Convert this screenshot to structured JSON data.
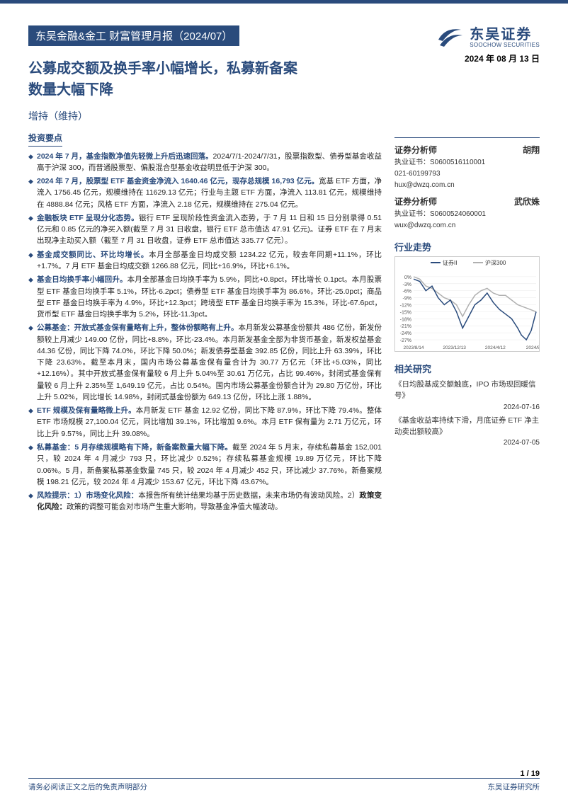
{
  "header": {
    "report_tag": "东吴金融&金工 财富管理月报（2024/07）",
    "logo_cn": "东吴证券",
    "logo_en": "SOOCHOW SECURITIES",
    "main_title_l1": "公募成交额及换手率小幅增长，私募新备案",
    "main_title_l2": "数量大幅下降",
    "rating": "增持（维持）",
    "date": "2024 年 08 月 13 日"
  },
  "analysts": [
    {
      "role": "证券分析师",
      "name": "胡翔",
      "cert": "执业证书：S0600516110001",
      "phone": "021-60199793",
      "email": "hux@dwzq.com.cn"
    },
    {
      "role": "证券分析师",
      "name": "武欣姝",
      "cert": "执业证书：S0600524060001",
      "phone": "",
      "email": "wux@dwzq.com.cn"
    }
  ],
  "left": {
    "section_title": "投资要点"
  },
  "points": [
    {
      "lead": "2024 年 7 月，基金指数净值先轻微上升后迅速回落。",
      "body": "2024/7/1-2024/7/31，股票指数型、债券型基金收益高于沪深 300，而普通股票型、偏股混合型基金收益明显低于沪深 300。"
    },
    {
      "lead": "2024 年 7 月，股票型 ETF 基金资金净流入 1640.46 亿元，现存总规模 16,793 亿元。",
      "body": "宽基 ETF 方面，净流入 1756.45 亿元，规模维持在 11629.13 亿元；行业与主题 ETF 方面，净流入 113.81 亿元，规模维持在 4888.84 亿元；风格 ETF 方面，净流入 2.18 亿元，规模维持在 275.04 亿元。"
    },
    {
      "lead": "金融板块 ETF 呈现分化态势。",
      "body": "银行 ETF 呈现阶段性资金流入态势，于 7 月 11 日和 15 日分别录得 0.51 亿元和 0.85 亿元的净买入额(截至 7 月 31 日收盘，银行 ETF 总市值达 47.91 亿元)。证券 ETF 在 7 月末出现净主动买入额（截至 7 月 31 日收盘，证券 ETF 总市值达 335.77 亿元）。"
    },
    {
      "lead": "基金成交额同比、环比均增长。",
      "body": "本月全部基金日均成交额 1234.22 亿元，较去年同期+11.1%，环比+1.7%。7 月 ETF 基金日均成交额 1266.88 亿元，同比+16.9%，环比+6.1%。"
    },
    {
      "lead": "基金日均换手率小幅回升。",
      "body": "本月全部基金日均换手率为 5.9%，同比+0.8pct，环比增长 0.1pct。本月股票型 ETF 基金日均换手率 5.1%，环比-6.2pct；债券型 ETF 基金日均换手率为 86.6%，环比-25.0pct；商品型 ETF 基金日均换手率为 4.9%，环比+12.3pct；跨境型 ETF 基金日均换手率为 15.3%，环比-67.6pct，货币型 ETF 基金日均换手率为 5.2%，环比-11.3pct。"
    },
    {
      "lead": "公募基金：开放式基金保有量略有上升，整体份额略有上升。",
      "body": "本月新发公募基金份额共 486 亿份，新发份额较上月减少 149.00 亿份，同比+8.8%，环比-23.4%。本月新发基金全部为非货币基金，新发权益基金 44.36 亿份，同比下降 74.0%，环比下降 50.0%；新发债券型基金 392.85 亿份，同比上升 63.39%，环比下降 23.63%。截至本月末，国内市场公募基金保有量合计为 30.77 万亿元（环比+5.03%，同比+12.16%）。其中开放式基金保有量较 6 月上升 5.04%至 30.61 万亿元，占比 99.46%，封闭式基金保有量较 6 月上升 2.35%至 1,649.19 亿元，占比 0.54%。国内市场公募基金份额合计为 29.80 万亿份，环比上升 5.02%，同比增长 14.98%，封闭式基金份额为 649.13 亿份，环比上涨 1.88%。"
    },
    {
      "lead": "ETF 规模及保有量略微上升。",
      "body": "本月新发 ETF 基金 12.92 亿份，同比下降 87.9%，环比下降 79.4%。整体 ETF 市场规模 27,100.04 亿元，同比增加 39.1%，环比增加 9.6%。本月 ETF 保有量为 2.71 万亿元，环比上升 9.57%，同比上升 39.08%。"
    },
    {
      "lead": "私募基金：5 月存续规模略有下降，新备案数量大幅下降。",
      "body": "截至 2024 年 5 月末，存续私募基金 152,001 只，较 2024 年 4 月减少 793 只，环比减少 0.52%；存续私募基金规模 19.89 万亿元，环比下降 0.06%。5 月，新备案私募基金数量 745 只，较 2024 年 4 月减少 452 只，环比减少 37.76%，新备案规模 198.21 亿元，较 2024 年 4 月减少 153.67 亿元，环比下降 43.67%。"
    },
    {
      "lead": "风险提示：1）市场变化风险：",
      "body": "本报告所有统计结果均基于历史数据，未来市场仍有波动风险。2）<b>政策变化风险：</b>政策的调整可能会对市场产生重大影响，导致基金净值大幅波动。",
      "bold_in_body": true
    }
  ],
  "sector": {
    "title": "行业走势",
    "chart": {
      "type": "line",
      "series": [
        {
          "name": "证券II",
          "color": "#2a4b7c"
        },
        {
          "name": "沪深300",
          "color": "#b0b0b0"
        }
      ],
      "x_labels": [
        "2023/8/14",
        "2023/12/13",
        "2024/4/12",
        "2024/8/11"
      ],
      "y_ticks": [
        0,
        -3,
        -6,
        -9,
        -12,
        -15,
        -18,
        -21,
        -24,
        -27
      ],
      "y_suffix": "%",
      "ylim": [
        -27,
        3
      ],
      "background_color": "#ffffff",
      "grid_color": "#e8e8e8",
      "line_width": 1.5,
      "s1_points": [
        [
          0,
          -1
        ],
        [
          0.05,
          -2
        ],
        [
          0.1,
          -6
        ],
        [
          0.15,
          -4
        ],
        [
          0.2,
          -9
        ],
        [
          0.25,
          -12
        ],
        [
          0.3,
          -10
        ],
        [
          0.35,
          -15
        ],
        [
          0.4,
          -22
        ],
        [
          0.45,
          -17
        ],
        [
          0.5,
          -12
        ],
        [
          0.55,
          -10
        ],
        [
          0.6,
          -7
        ],
        [
          0.65,
          -11
        ],
        [
          0.7,
          -14
        ],
        [
          0.75,
          -16
        ],
        [
          0.8,
          -18
        ],
        [
          0.85,
          -22
        ],
        [
          0.88,
          -25
        ],
        [
          0.92,
          -27
        ],
        [
          0.96,
          -23
        ],
        [
          1,
          -15
        ]
      ],
      "s2_points": [
        [
          0,
          0
        ],
        [
          0.05,
          -1
        ],
        [
          0.1,
          -4
        ],
        [
          0.15,
          -5
        ],
        [
          0.2,
          -7
        ],
        [
          0.25,
          -9
        ],
        [
          0.3,
          -10
        ],
        [
          0.35,
          -12
        ],
        [
          0.4,
          -17
        ],
        [
          0.45,
          -12
        ],
        [
          0.5,
          -8
        ],
        [
          0.55,
          -6
        ],
        [
          0.6,
          -5
        ],
        [
          0.65,
          -7
        ],
        [
          0.7,
          -8
        ],
        [
          0.75,
          -8
        ],
        [
          0.8,
          -10
        ],
        [
          0.85,
          -12
        ],
        [
          0.9,
          -13
        ],
        [
          0.95,
          -14
        ],
        [
          1,
          -15
        ]
      ]
    }
  },
  "related": {
    "title": "相关研究",
    "items": [
      {
        "text": "《日均股基成交额触底，IPO 市场现回暖信号》",
        "date": "2024-07-16"
      },
      {
        "text": "《基金收益率持续下滑，月底证券 ETF 净主动卖出额较高》",
        "date": "2024-07-05"
      }
    ]
  },
  "footer": {
    "disclaimer": "请务必阅读正文之后的免责声明部分",
    "org": "东吴证券研究所",
    "page": "1 / 19"
  },
  "colors": {
    "primary": "#2a4b7c",
    "text": "#222222"
  }
}
